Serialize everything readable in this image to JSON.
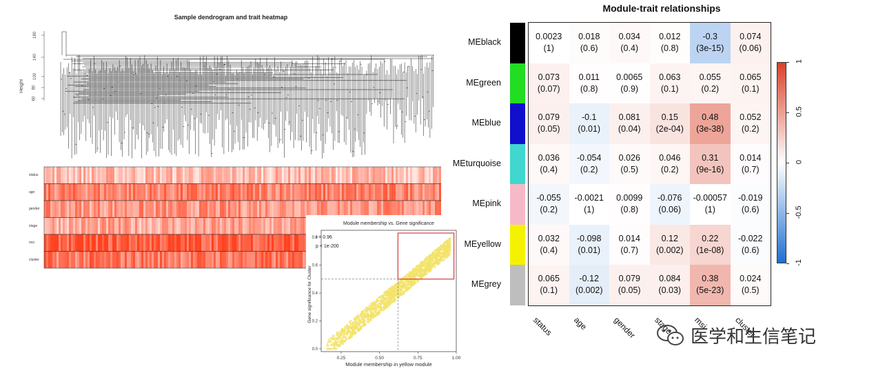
{
  "dendrogram": {
    "title": "Sample dendrogram and trait heatmap",
    "ylabel": "Height",
    "yticks": [
      "180",
      "140",
      "100",
      "80",
      "60"
    ],
    "trait_rows": [
      "status",
      "age",
      "gender",
      "stage",
      "msi",
      "cluster"
    ]
  },
  "scatter": {
    "title": "Module membership vs. Gene significance",
    "annotation_r": "r = 0.96",
    "annotation_p": "p < 1e-200",
    "xlabel": "Module membership in yellow module",
    "ylabel": "Gene significance for Cluster",
    "xticks": [
      "0.25",
      "0.50",
      "0.75",
      "1.00"
    ],
    "yticks": [
      "0.0",
      "0.2",
      "0.4",
      "0.6",
      "0.8"
    ],
    "point_color": "#f3e36a",
    "box_color": "#d22a2a"
  },
  "chart_data": {
    "type": "heatmap",
    "title": "Module-trait relationships",
    "rows": [
      "MEblack",
      "MEgreen",
      "MEblue",
      "MEturquoise",
      "MEpink",
      "MEyellow",
      "MEgrey"
    ],
    "row_colors": [
      "#000000",
      "#22dd22",
      "#1010cc",
      "#3fd7cf",
      "#f7b9c7",
      "#f5f200",
      "#bebebe"
    ],
    "columns": [
      "status",
      "age",
      "gender",
      "stage",
      "msi",
      "cluster"
    ],
    "values": [
      [
        0.0023,
        0.018,
        0.034,
        0.012,
        -0.3,
        0.074
      ],
      [
        0.073,
        0.011,
        0.0065,
        0.063,
        0.055,
        0.065
      ],
      [
        0.079,
        -0.1,
        0.081,
        0.15,
        0.48,
        0.052
      ],
      [
        0.036,
        -0.054,
        0.026,
        0.046,
        0.31,
        0.014
      ],
      [
        -0.055,
        -0.0021,
        0.0099,
        -0.076,
        -0.00057,
        -0.019
      ],
      [
        0.032,
        -0.098,
        0.014,
        0.12,
        0.22,
        -0.022
      ],
      [
        0.065,
        -0.12,
        0.079,
        0.084,
        0.38,
        0.024
      ]
    ],
    "pvalues": [
      [
        "(1)",
        "(0.6)",
        "(0.4)",
        "(0.8)",
        "(3e-15)",
        "(0.06)"
      ],
      [
        "(0.07)",
        "(0.8)",
        "(0.9)",
        "(0.1)",
        "(0.2)",
        "(0.1)"
      ],
      [
        "(0.05)",
        "(0.01)",
        "(0.04)",
        "(2e-04)",
        "(3e-38)",
        "(0.2)"
      ],
      [
        "(0.4)",
        "(0.2)",
        "(0.5)",
        "(0.2)",
        "(9e-16)",
        "(0.7)"
      ],
      [
        "(0.2)",
        "(1)",
        "(0.8)",
        "(0.06)",
        "(1)",
        "(0.6)"
      ],
      [
        "(0.4)",
        "(0.01)",
        "(0.7)",
        "(0.002)",
        "(1e-08)",
        "(0.6)"
      ],
      [
        "(0.1)",
        "(0.002)",
        "(0.05)",
        "(0.03)",
        "(5e-23)",
        "(0.5)"
      ]
    ],
    "value_labels": [
      [
        "0.0023",
        "0.018",
        "0.034",
        "0.012",
        "-0.3",
        "0.074"
      ],
      [
        "0.073",
        "0.011",
        "0.0065",
        "0.063",
        "0.055",
        "0.065"
      ],
      [
        "0.079",
        "-0.1",
        "0.081",
        "0.15",
        "0.48",
        "0.052"
      ],
      [
        "0.036",
        "-0.054",
        "0.026",
        "0.046",
        "0.31",
        "0.014"
      ],
      [
        "-0.055",
        "-0.0021",
        "0.0099",
        "-0.076",
        "-0.00057",
        "-0.019"
      ],
      [
        "0.032",
        "-0.098",
        "0.014",
        "0.12",
        "0.22",
        "-0.022"
      ],
      [
        "0.065",
        "-0.12",
        "0.079",
        "0.084",
        "0.38",
        "0.024"
      ]
    ],
    "colorbar": {
      "range": [
        -1,
        1
      ],
      "ticks": [
        "1",
        "0.5",
        "0",
        "-0.5",
        "-1"
      ],
      "low_color": "#1f6fd1",
      "mid_color": "#ffffff",
      "high_color": "#d9412a"
    }
  },
  "watermark": {
    "text": "医学和生信笔记",
    "icon": "wechat-icon"
  }
}
